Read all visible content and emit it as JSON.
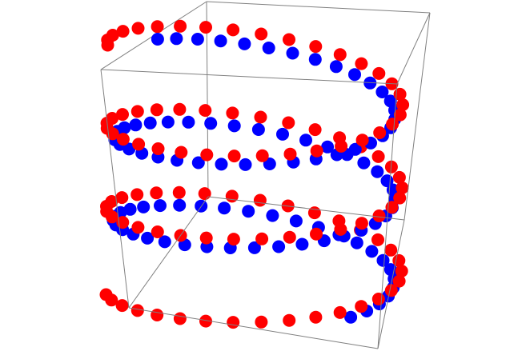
{
  "chart_data": {
    "type": "scatter",
    "projection": "3d",
    "title": "",
    "axes_labels": false,
    "tick_labels": false,
    "grid": false,
    "bounding_box": true,
    "series": [
      {
        "color": "#ff0000",
        "form": "helix",
        "radius": 1.0,
        "turns": 3,
        "phase_start": 90,
        "phase_end": -990,
        "z_start": 1.0,
        "z_end": -1.0,
        "points": 100
      },
      {
        "color": "#0000ff",
        "form": "helix",
        "radius": 0.95,
        "turns": 2.5,
        "phase_start": 38,
        "phase_end": -862,
        "z_start": 0.82,
        "z_end": -0.85,
        "points": 92
      }
    ]
  }
}
